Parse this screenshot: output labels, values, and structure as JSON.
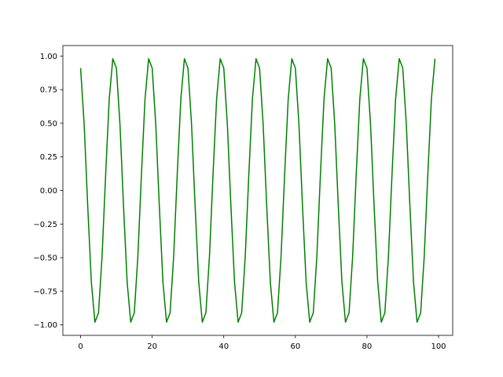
{
  "chart_data": {
    "type": "line",
    "title": "",
    "xlabel": "",
    "ylabel": "",
    "xlim": [
      -4.95,
      103.95
    ],
    "ylim": [
      -1.078,
      1.078
    ],
    "grid": false,
    "xticks": [
      0,
      20,
      40,
      60,
      80,
      100
    ],
    "xtick_labels": [
      "0",
      "20",
      "40",
      "60",
      "80",
      "100"
    ],
    "yticks": [
      -1.0,
      -0.75,
      -0.5,
      -0.25,
      0.0,
      0.25,
      0.5,
      0.75,
      1.0
    ],
    "ytick_labels": [
      "−1.00",
      "−0.75",
      "−0.50",
      "−0.25",
      "0.00",
      "0.25",
      "0.50",
      "0.75",
      "1.00"
    ],
    "series": [
      {
        "color": "#008000",
        "x_start": 0,
        "x_step": 1,
        "values": [
          0.91,
          0.49,
          -0.12,
          -0.68,
          -0.98,
          -0.91,
          -0.49,
          0.12,
          0.68,
          0.98,
          0.91,
          0.49,
          -0.12,
          -0.68,
          -0.98,
          -0.91,
          -0.49,
          0.12,
          0.68,
          0.98,
          0.91,
          0.49,
          -0.12,
          -0.68,
          -0.98,
          -0.91,
          -0.49,
          0.12,
          0.68,
          0.98,
          0.91,
          0.49,
          -0.12,
          -0.68,
          -0.98,
          -0.91,
          -0.49,
          0.12,
          0.68,
          0.98,
          0.91,
          0.49,
          -0.12,
          -0.68,
          -0.98,
          -0.91,
          -0.49,
          0.12,
          0.68,
          0.98,
          0.91,
          0.49,
          -0.12,
          -0.68,
          -0.98,
          -0.91,
          -0.49,
          0.12,
          0.68,
          0.98,
          0.91,
          0.49,
          -0.12,
          -0.68,
          -0.98,
          -0.91,
          -0.49,
          0.12,
          0.68,
          0.98,
          0.91,
          0.49,
          -0.12,
          -0.68,
          -0.98,
          -0.91,
          -0.49,
          0.12,
          0.68,
          0.98,
          0.91,
          0.49,
          -0.12,
          -0.68,
          -0.98,
          -0.91,
          -0.49,
          0.12,
          0.68,
          0.98,
          0.91,
          0.49,
          -0.12,
          -0.68,
          -0.98,
          -0.91,
          -0.49,
          0.12,
          0.68,
          0.98
        ]
      }
    ]
  }
}
